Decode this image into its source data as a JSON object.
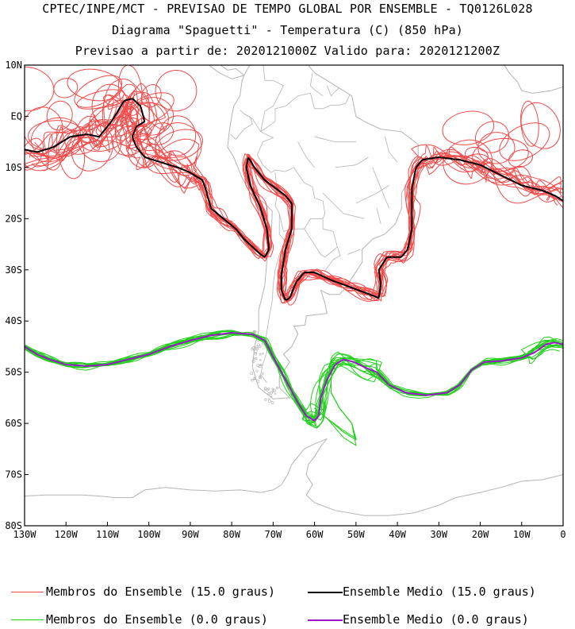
{
  "titles": {
    "line1": "CPTEC/INPE/MCT - PREVISAO DE TEMPO GLOBAL POR ENSEMBLE - TQ0126L028",
    "line2": "Diagrama \"Spaguetti\" - Temperatura (C) (850 hPa)",
    "line3": "Previsao a partir de: 2020121000Z  Valido para: 2020121200Z"
  },
  "colors": {
    "members_15": "#f24a4a",
    "mean_15": "#000000",
    "members_0": "#22d01c",
    "mean_0": "#9b16c8",
    "coast": "#b4b4b4",
    "frame": "#000000"
  },
  "chart_data": {
    "type": "spaghetti-map",
    "title": "Diagrama \"Spaguetti\" - Temperatura (C) (850 hPa)",
    "xlim": [
      -130,
      0
    ],
    "ylim": [
      -80,
      10
    ],
    "x_ticks": [
      {
        "value": -130,
        "label": "130W"
      },
      {
        "value": -120,
        "label": "120W"
      },
      {
        "value": -110,
        "label": "110W"
      },
      {
        "value": -100,
        "label": "100W"
      },
      {
        "value": -90,
        "label": "90W"
      },
      {
        "value": -80,
        "label": "80W"
      },
      {
        "value": -70,
        "label": "70W"
      },
      {
        "value": -60,
        "label": "60W"
      },
      {
        "value": -50,
        "label": "50W"
      },
      {
        "value": -40,
        "label": "40W"
      },
      {
        "value": -30,
        "label": "30W"
      },
      {
        "value": -20,
        "label": "20W"
      },
      {
        "value": -10,
        "label": "10W"
      },
      {
        "value": 0,
        "label": "0"
      }
    ],
    "y_ticks": [
      {
        "value": 10,
        "label": "10N"
      },
      {
        "value": 0,
        "label": "EQ"
      },
      {
        "value": -10,
        "label": "10S"
      },
      {
        "value": -20,
        "label": "20S"
      },
      {
        "value": -30,
        "label": "30S"
      },
      {
        "value": -40,
        "label": "40S"
      },
      {
        "value": -50,
        "label": "50S"
      },
      {
        "value": -60,
        "label": "60S"
      },
      {
        "value": -70,
        "label": "70S"
      },
      {
        "value": -80,
        "label": "80S"
      }
    ],
    "series": [
      {
        "name": "Ensemble Medio (15.0 graus)",
        "role": "mean_15",
        "lines": [
          [
            [
              -130,
              -6.5
            ],
            [
              -127,
              -7
            ],
            [
              -123,
              -6
            ],
            [
              -119,
              -4
            ],
            [
              -115,
              -3.5
            ],
            [
              -112,
              -4
            ],
            [
              -109,
              -1
            ],
            [
              -106,
              3
            ],
            [
              -104,
              3.5
            ],
            [
              -102,
              2
            ],
            [
              -101,
              -1
            ],
            [
              -103,
              -2
            ],
            [
              -104,
              -4
            ],
            [
              -103,
              -6
            ],
            [
              -101,
              -8
            ],
            [
              -97,
              -9
            ],
            [
              -93,
              -10
            ],
            [
              -90,
              -11
            ],
            [
              -87,
              -12.5
            ],
            [
              -86,
              -15
            ],
            [
              -85,
              -18
            ],
            [
              -82,
              -20
            ],
            [
              -79,
              -22
            ],
            [
              -77,
              -24
            ],
            [
              -75,
              -25.5
            ],
            [
              -73,
              -27
            ],
            [
              -72,
              -27.5
            ],
            [
              -71,
              -26
            ],
            [
              -71.5,
              -22
            ],
            [
              -73,
              -18
            ],
            [
              -75.5,
              -13.5
            ],
            [
              -76.5,
              -10
            ],
            [
              -76,
              -8
            ],
            [
              -74.5,
              -10
            ],
            [
              -72,
              -12.5
            ],
            [
              -69.5,
              -14
            ],
            [
              -67,
              -15.5
            ],
            [
              -65.5,
              -17
            ],
            [
              -65.5,
              -20
            ],
            [
              -65.5,
              -22
            ],
            [
              -67,
              -26
            ],
            [
              -68,
              -31
            ],
            [
              -68,
              -34
            ],
            [
              -67,
              -36
            ],
            [
              -66,
              -35.5
            ],
            [
              -64.5,
              -32.5
            ],
            [
              -62.5,
              -30.5
            ],
            [
              -60,
              -30.5
            ],
            [
              -56,
              -32
            ],
            [
              -51,
              -33.5
            ],
            [
              -46,
              -35
            ],
            [
              -44.5,
              -35.5
            ],
            [
              -44,
              -33
            ],
            [
              -44.5,
              -30
            ],
            [
              -42.5,
              -27.5
            ],
            [
              -39,
              -27.5
            ],
            [
              -37.5,
              -26
            ],
            [
              -36.5,
              -22
            ],
            [
              -36.5,
              -14
            ],
            [
              -35.5,
              -10
            ],
            [
              -34,
              -8.5
            ],
            [
              -30,
              -8
            ],
            [
              -25,
              -8.5
            ],
            [
              -20,
              -9.5
            ],
            [
              -15,
              -11.5
            ],
            [
              -10,
              -13.5
            ],
            [
              -5,
              -14.5
            ],
            [
              -2,
              -15.5
            ],
            [
              0,
              -16.5
            ]
          ]
        ]
      },
      {
        "name": "Membros do Ensemble (15.0 graus)",
        "role": "members_15",
        "count": 15
      },
      {
        "name": "Ensemble Medio (0.0 graus)",
        "role": "mean_0",
        "lines": [
          [
            [
              -130,
              -45
            ],
            [
              -127,
              -46.5
            ],
            [
              -124,
              -47.5
            ],
            [
              -120,
              -48.5
            ],
            [
              -115,
              -48.8
            ],
            [
              -110,
              -48.5
            ],
            [
              -105,
              -47.5
            ],
            [
              -100,
              -46.5
            ],
            [
              -95,
              -45
            ],
            [
              -90,
              -43.8
            ],
            [
              -85,
              -42.8
            ],
            [
              -80,
              -42.3
            ],
            [
              -75,
              -42.6
            ],
            [
              -72,
              -43.8
            ],
            [
              -70,
              -47
            ],
            [
              -68,
              -50
            ],
            [
              -66,
              -53
            ],
            [
              -64,
              -56
            ],
            [
              -62,
              -58.5
            ],
            [
              -60,
              -59.5
            ],
            [
              -59,
              -58.5
            ],
            [
              -58.5,
              -55
            ],
            [
              -57,
              -51.5
            ],
            [
              -55,
              -48.5
            ],
            [
              -53,
              -47.5
            ],
            [
              -50.5,
              -48
            ],
            [
              -48,
              -49
            ],
            [
              -45,
              -50
            ],
            [
              -42,
              -52.5
            ],
            [
              -38,
              -54
            ],
            [
              -33,
              -54.5
            ],
            [
              -28,
              -54
            ],
            [
              -25,
              -52.5
            ],
            [
              -22,
              -49.5
            ],
            [
              -19,
              -48
            ],
            [
              -15,
              -47.8
            ],
            [
              -10,
              -47.2
            ],
            [
              -7,
              -46.2
            ],
            [
              -4,
              -44.5
            ],
            [
              -2,
              -44.2
            ],
            [
              0,
              -44.6
            ]
          ]
        ]
      },
      {
        "name": "Membros do Ensemble (0.0 graus)",
        "role": "members_0",
        "count": 15
      }
    ]
  },
  "legend": {
    "members_15": "Membros do Ensemble (15.0 graus)",
    "mean_15": "Ensemble Medio (15.0 graus)",
    "members_0": "Membros do Ensemble (0.0 graus)",
    "mean_0": "Ensemble Medio (0.0 graus)"
  }
}
